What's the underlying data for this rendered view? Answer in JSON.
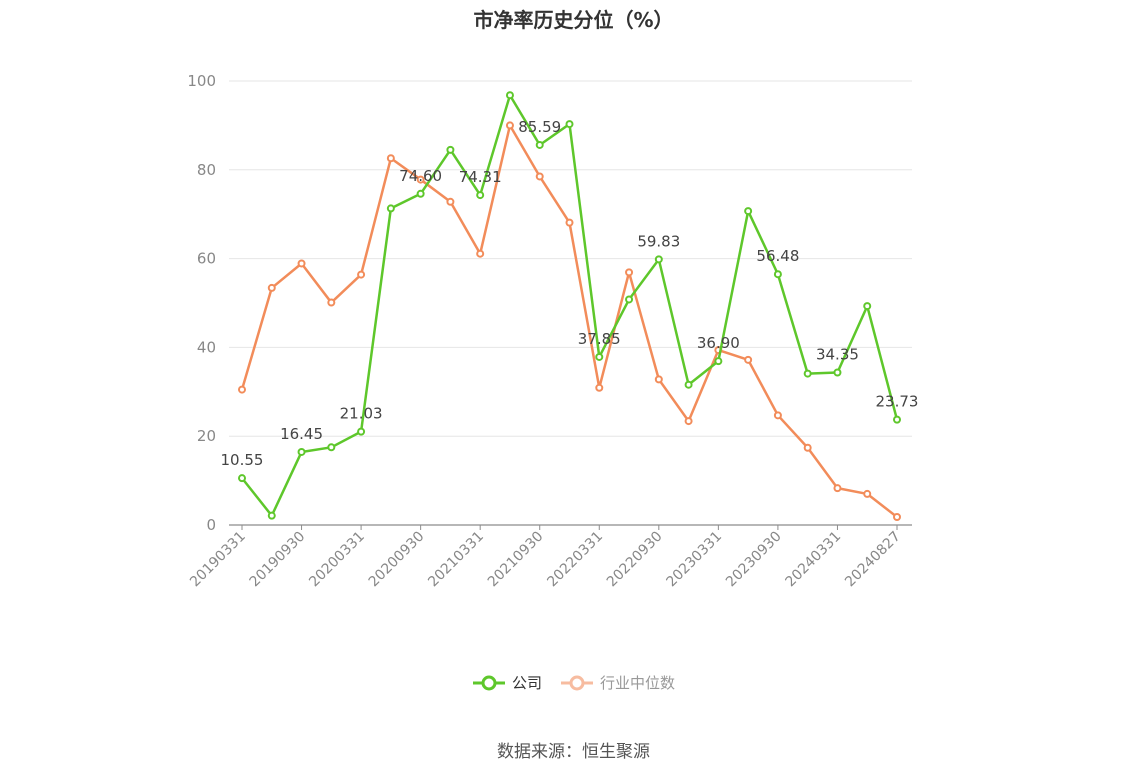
{
  "chart_data": {
    "type": "line",
    "title": "市净率历史分位（%）",
    "x": [
      "20190331",
      "20190630",
      "20190930",
      "20191231",
      "20200331",
      "20200630",
      "20200930",
      "20201231",
      "20210331",
      "20210630",
      "20210930",
      "20211231",
      "20220331",
      "20220630",
      "20220930",
      "20221231",
      "20230331",
      "20230630",
      "20230930",
      "20231231",
      "20240331",
      "20240630",
      "20240827"
    ],
    "x_tick_labels": [
      "20190331",
      "20190930",
      "20200331",
      "20200930",
      "20210331",
      "20210930",
      "20220331",
      "20220930",
      "20230331",
      "20230930",
      "20240331",
      "20240827"
    ],
    "ylim": [
      0,
      100
    ],
    "y_ticks": [
      "0",
      "20",
      "40",
      "60",
      "80",
      "100"
    ],
    "grid": true,
    "series": [
      {
        "name": "公司",
        "color": "#5ec72b",
        "values": [
          10.55,
          2.1,
          16.45,
          17.5,
          21.03,
          71.3,
          74.6,
          84.5,
          74.31,
          96.8,
          85.59,
          90.3,
          37.85,
          50.8,
          59.83,
          31.6,
          36.9,
          70.7,
          56.48,
          34.1,
          34.35,
          49.3,
          23.73
        ],
        "labels": [
          "10.55",
          "",
          "16.45",
          "",
          "21.03",
          "",
          "74.60",
          "",
          "74.31",
          "",
          "85.59",
          "",
          "37.85",
          "",
          "59.83",
          "",
          "36.90",
          "",
          "56.48",
          "",
          "34.35",
          "",
          "23.73"
        ]
      },
      {
        "name": "行业中位数",
        "color": "#f28c5a",
        "values": [
          30.5,
          53.4,
          58.9,
          50.1,
          56.4,
          82.6,
          77.8,
          72.8,
          61.1,
          90.0,
          78.5,
          68.1,
          30.9,
          56.9,
          32.8,
          23.4,
          39.4,
          37.2,
          24.7,
          17.4,
          8.3,
          7.0,
          1.8
        ]
      }
    ]
  },
  "legend": {
    "company": "公司",
    "industry": "行业中位数"
  },
  "source": "数据来源：恒生聚源"
}
